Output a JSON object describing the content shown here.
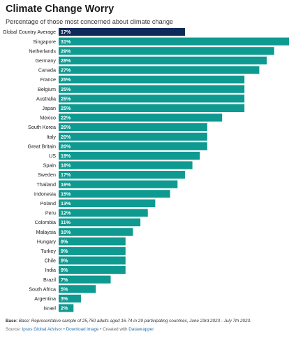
{
  "chart_data": {
    "type": "bar",
    "orientation": "horizontal",
    "title": "Climate Change Worry",
    "subtitle": "Percentage of those most concerned about climate change",
    "categories": [
      "Global Country Average",
      "Singapore",
      "Netherlands",
      "Germany",
      "Canada",
      "France",
      "Belgium",
      "Australia",
      "Japan",
      "Mexico",
      "South Korea",
      "Italy",
      "Great Britain",
      "US",
      "Spain",
      "Sweden",
      "Thailand",
      "Indonesia",
      "Poland",
      "Peru",
      "Colombia",
      "Malaysia",
      "Hungary",
      "Turkey",
      "Chile",
      "India",
      "Brazil",
      "South Africa",
      "Argentina",
      "Israel"
    ],
    "values": [
      17,
      31,
      29,
      28,
      27,
      25,
      25,
      25,
      25,
      22,
      20,
      20,
      20,
      19,
      18,
      17,
      16,
      15,
      13,
      12,
      11,
      10,
      9,
      9,
      9,
      9,
      7,
      5,
      3,
      2
    ],
    "value_labels": [
      "17%",
      "31%",
      "29%",
      "28%",
      "27%",
      "25%",
      "25%",
      "25%",
      "25%",
      "22%",
      "20%",
      "20%",
      "20%",
      "19%",
      "18%",
      "17%",
      "16%",
      "15%",
      "13%",
      "12%",
      "11%",
      "10%",
      "9%",
      "9%",
      "9%",
      "9%",
      "7%",
      "5%",
      "3%",
      "2%"
    ],
    "xlim": [
      0,
      31
    ],
    "colors": {
      "highlight": "#0e2a5a",
      "default": "#0e9a90"
    },
    "highlight_index": 0
  },
  "footnote": {
    "base_label": "Base:",
    "text": "Base: Representative sample of 25,750 adults aged 16-74 in 29 participating countries, June 23rd 2023 - July 7th 2023."
  },
  "source": {
    "prefix": "Source: ",
    "publisher": "Ipsos Global Advisor",
    "sep1": " • ",
    "download": "Download image",
    "sep2": " • Created with ",
    "tool": "Datawrapper"
  }
}
